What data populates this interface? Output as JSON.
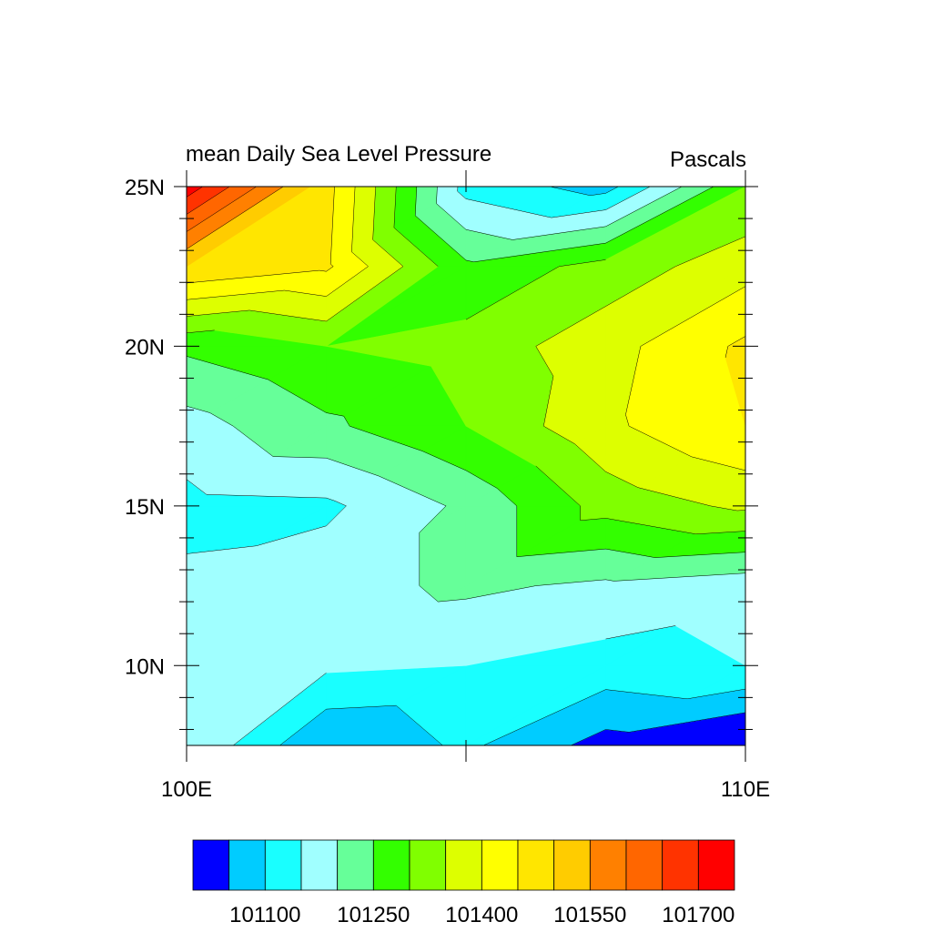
{
  "chart_data": {
    "type": "contour",
    "title": "mean Daily Sea Level Pressure",
    "units_label": "Pascals",
    "xlabel": "",
    "ylabel": "",
    "x_ticks": [
      {
        "value": 100,
        "label": "100E"
      },
      {
        "value": 110,
        "label": "110E"
      }
    ],
    "y_ticks": [
      {
        "value": 10,
        "label": "10N"
      },
      {
        "value": 15,
        "label": "15N"
      },
      {
        "value": 20,
        "label": "20N"
      },
      {
        "value": 25,
        "label": "25N"
      }
    ],
    "xlim": [
      100,
      110
    ],
    "ylim": [
      7.5,
      25
    ],
    "colorbar": {
      "levels": [
        101050,
        101100,
        101150,
        101200,
        101250,
        101300,
        101350,
        101400,
        101450,
        101500,
        101550,
        101600,
        101650,
        101700
      ],
      "colors": [
        "#0000ff",
        "#00ccff",
        "#19ffff",
        "#a0ffff",
        "#66ff99",
        "#33ff00",
        "#80ff00",
        "#ddff00",
        "#ffff00",
        "#ffe600",
        "#ffcc00",
        "#ff8000",
        "#ff6600",
        "#ff3300",
        "#ff0000"
      ],
      "tick_labels": [
        {
          "value": 101100,
          "label": "101100"
        },
        {
          "value": 101250,
          "label": "101250"
        },
        {
          "value": 101400,
          "label": "101400"
        },
        {
          "value": 101550,
          "label": "101550"
        },
        {
          "value": 101700,
          "label": "101700"
        }
      ]
    },
    "grid": {
      "lon": [
        100,
        102.5,
        105,
        107.5,
        110
      ],
      "lat": [
        7.5,
        10,
        12.5,
        15,
        17.5,
        20,
        22.5,
        25
      ],
      "values": [
        [
          101200,
          101050,
          101110,
          101030,
          100980
        ],
        [
          101170,
          101160,
          101150,
          101130,
          101150
        ],
        [
          101160,
          101180,
          101210,
          101190,
          101170
        ],
        [
          101135,
          101140,
          101210,
          101320,
          101360
        ],
        [
          101180,
          101240,
          101300,
          101390,
          101450
        ],
        [
          101260,
          101300,
          101320,
          101380,
          101460
        ],
        [
          101500,
          101460,
          101260,
          101320,
          101380
        ],
        [
          101730,
          101470,
          101130,
          101080,
          101300
        ]
      ]
    }
  }
}
